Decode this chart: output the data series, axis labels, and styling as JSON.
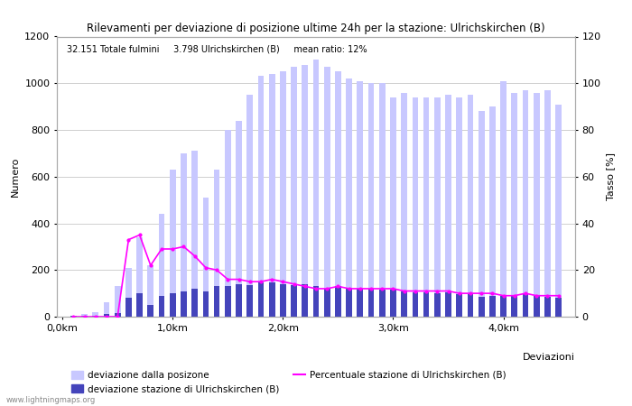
{
  "title": "Rilevamenti per deviazione di posizione ultime 24h per la stazione: Ulrichskirchen (B)",
  "subtitle": "32.151 Totale fulmini     3.798 Ulrichskirchen (B)     mean ratio: 12%",
  "xlabel": "Deviazioni",
  "ylabel_left": "Numero",
  "ylabel_right": "Tasso [%]",
  "watermark": "www.lightningmaps.org",
  "bar_positions": [
    0.1,
    0.2,
    0.3,
    0.4,
    0.5,
    0.6,
    0.7,
    0.8,
    0.9,
    1.0,
    1.1,
    1.2,
    1.3,
    1.4,
    1.5,
    1.6,
    1.7,
    1.8,
    1.9,
    2.0,
    2.1,
    2.2,
    2.3,
    2.4,
    2.5,
    2.6,
    2.7,
    2.8,
    2.9,
    3.0,
    3.1,
    3.2,
    3.3,
    3.4,
    3.5,
    3.6,
    3.7,
    3.8,
    3.9,
    4.0,
    4.1,
    4.2,
    4.3,
    4.4,
    4.5
  ],
  "bars_total": [
    5,
    10,
    20,
    60,
    130,
    210,
    340,
    220,
    440,
    630,
    700,
    710,
    510,
    630,
    800,
    840,
    950,
    1030,
    1040,
    1050,
    1070,
    1080,
    1100,
    1070,
    1050,
    1020,
    1010,
    1000,
    1000,
    940,
    960,
    940,
    940,
    940,
    950,
    940,
    950,
    880,
    900,
    1010,
    960,
    970,
    960,
    970,
    910
  ],
  "bars_station": [
    2,
    3,
    5,
    10,
    15,
    80,
    100,
    50,
    90,
    100,
    110,
    120,
    110,
    130,
    130,
    140,
    135,
    145,
    145,
    140,
    135,
    140,
    130,
    120,
    130,
    125,
    120,
    120,
    115,
    115,
    110,
    105,
    105,
    100,
    105,
    95,
    95,
    85,
    90,
    90,
    90,
    95,
    90,
    85,
    80
  ],
  "line_ratio": [
    0,
    0,
    0,
    0,
    0,
    33,
    35,
    22,
    29,
    29,
    30,
    26,
    21,
    20,
    16,
    16,
    15,
    15,
    16,
    15,
    14,
    13,
    12,
    12,
    13,
    12,
    12,
    12,
    12,
    12,
    11,
    11,
    11,
    11,
    11,
    10,
    10,
    10,
    10,
    9,
    9,
    10,
    9,
    9,
    9
  ],
  "color_bar_total": "#c8c8ff",
  "color_bar_station": "#4444bb",
  "color_line": "#ff00ff",
  "color_grid": "#c8c8c8",
  "color_background": "#ffffff",
  "ylim_left": [
    0,
    1200
  ],
  "ylim_right": [
    0,
    120
  ],
  "xlim": [
    -0.05,
    4.65
  ],
  "xticks": [
    0.0,
    1.0,
    2.0,
    3.0,
    4.0
  ],
  "xticklabels": [
    "0,0km",
    "1,0km",
    "2,0km",
    "3,0km",
    "4,0km"
  ],
  "yticks_left": [
    0,
    200,
    400,
    600,
    800,
    1000,
    1200
  ],
  "yticks_right": [
    0,
    20,
    40,
    60,
    80,
    100,
    120
  ],
  "bar_width": 0.055
}
